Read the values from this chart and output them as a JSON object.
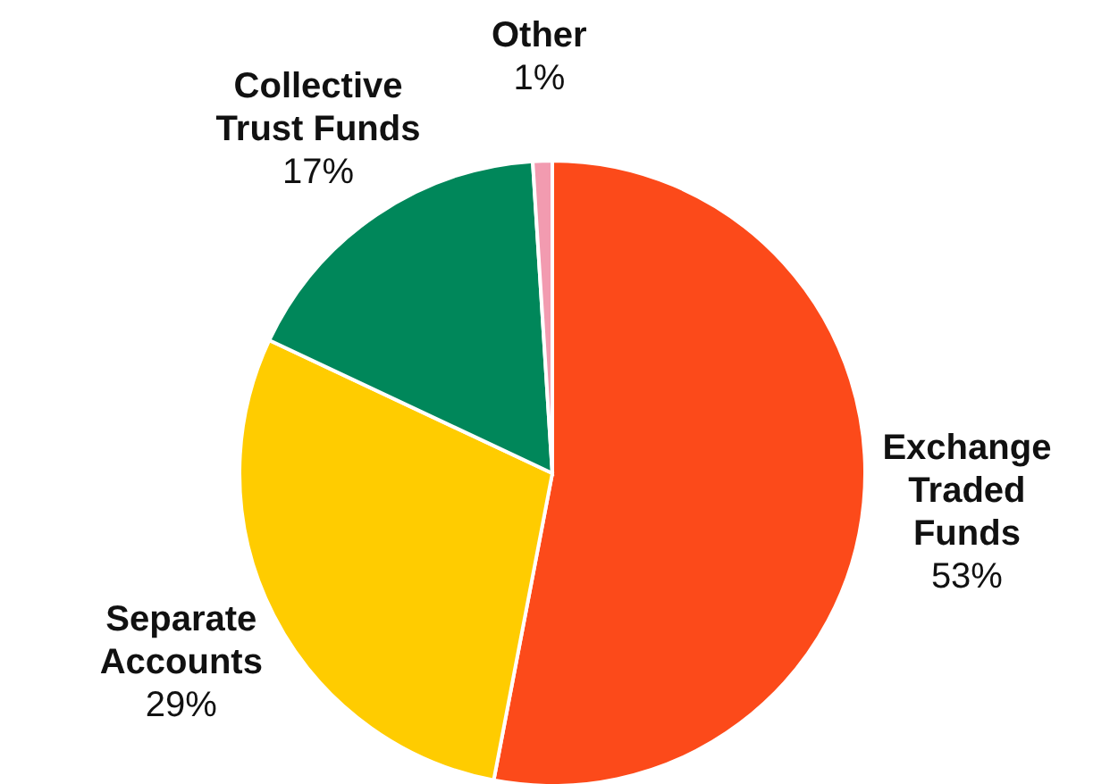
{
  "chart_data": {
    "type": "pie",
    "categories": [
      "Exchange\nTraded\nFunds",
      "Separate\nAccounts",
      "Collective\nTrust Funds",
      "Other"
    ],
    "values": [
      53,
      29,
      17,
      1
    ],
    "value_labels": [
      "53%",
      "29%",
      "17%",
      "1%"
    ],
    "colors": [
      "#fc4a1a",
      "#ffcc00",
      "#00875a",
      "#f29bb0"
    ],
    "legend": false
  }
}
